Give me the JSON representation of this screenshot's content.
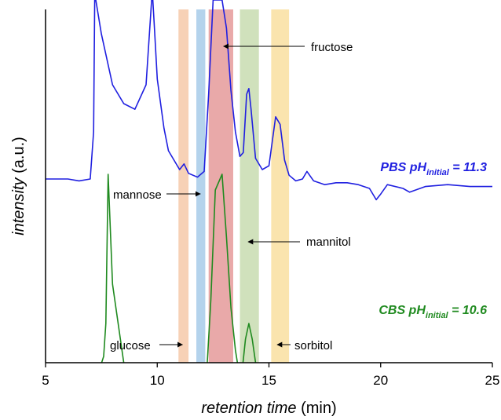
{
  "chart_data": {
    "type": "line",
    "xlabel": {
      "italic": "retention time",
      "unit": " (min)"
    },
    "ylabel": {
      "italic": "intensity",
      "unit": " (a.u.)"
    },
    "xlim": [
      5,
      25
    ],
    "xticks": [
      5,
      10,
      15,
      20,
      25
    ],
    "yticks": false,
    "grid": false,
    "colors": {
      "pbs": "#1f1fe0",
      "cbs": "#1f8a1f",
      "glucose_band": "#f6c9a9",
      "mannose_band": "#a7cbe9",
      "fructose_band": "#e59a9a",
      "mannitol_band": "#c8dcb0",
      "sorbitol_band": "#f9dfa0"
    },
    "bands": [
      {
        "name": "glucose",
        "x": [
          10.95,
          11.4
        ],
        "color": "#f6c9a9"
      },
      {
        "name": "mannose",
        "x": [
          11.75,
          12.15
        ],
        "color": "#a7cbe9"
      },
      {
        "name": "fructose",
        "x": [
          12.3,
          13.4
        ],
        "color": "#e59a9a"
      },
      {
        "name": "mannitol",
        "x": [
          13.7,
          14.55
        ],
        "color": "#c8dcb0"
      },
      {
        "name": "sorbitol",
        "x": [
          15.1,
          15.9
        ],
        "color": "#f9dfa0"
      }
    ],
    "annotations": [
      {
        "text": "fructose",
        "arrow_to_x": 12.9
      },
      {
        "text": "mannose",
        "arrow_to_x": 12.0
      },
      {
        "text": "mannitol",
        "arrow_to_x": 14.0
      },
      {
        "text": "glucose",
        "arrow_to_x": 11.2
      },
      {
        "text": "sorbitol",
        "arrow_to_x": 15.3
      }
    ],
    "series": [
      {
        "name": "PBS",
        "label": {
          "prefix": "PBS pH",
          "sub": "initial",
          "suffix": " = 11.3"
        },
        "color": "#1f1fe0",
        "x": [
          5.0,
          6.0,
          6.5,
          7.0,
          7.15,
          7.2,
          7.25,
          7.5,
          8.0,
          8.5,
          9.0,
          9.5,
          9.75,
          9.8,
          9.85,
          10.0,
          10.3,
          10.5,
          10.7,
          11.0,
          11.2,
          11.4,
          11.8,
          12.1,
          12.3,
          12.5,
          12.7,
          12.9,
          13.1,
          13.3,
          13.5,
          13.7,
          13.85,
          14.0,
          14.1,
          14.2,
          14.4,
          14.7,
          15.0,
          15.3,
          15.5,
          15.7,
          15.9,
          16.2,
          16.5,
          16.7,
          17.0,
          17.5,
          18.0,
          18.5,
          19.0,
          19.5,
          19.8,
          20.0,
          20.3,
          21.0,
          21.3,
          22.0,
          23.0,
          24.0,
          25.0
        ],
        "y": [
          0.05,
          0.05,
          0.04,
          0.05,
          0.3,
          1.0,
          1.0,
          0.82,
          0.55,
          0.45,
          0.42,
          0.55,
          1.0,
          1.0,
          0.9,
          0.58,
          0.32,
          0.2,
          0.16,
          0.1,
          0.13,
          0.08,
          0.06,
          0.09,
          0.5,
          1.0,
          1.0,
          1.0,
          0.85,
          0.52,
          0.3,
          0.17,
          0.19,
          0.5,
          0.53,
          0.42,
          0.16,
          0.1,
          0.12,
          0.38,
          0.34,
          0.15,
          0.07,
          0.04,
          0.05,
          0.09,
          0.04,
          0.02,
          0.03,
          0.03,
          0.02,
          0.0,
          -0.06,
          -0.03,
          0.02,
          0.0,
          -0.02,
          0.01,
          0.02,
          0.01,
          0.01
        ]
      },
      {
        "name": "CBS",
        "label": {
          "prefix": "CBS pH",
          "sub": "initial",
          "suffix": " = 10.6"
        },
        "color": "#1f8a1f",
        "x": [
          5.0,
          6.0,
          7.0,
          7.25,
          7.35,
          7.6,
          7.7,
          7.8,
          8.0,
          8.5,
          9.0,
          9.5,
          10.0,
          10.5,
          10.6,
          10.8,
          11.0,
          11.2,
          11.4,
          11.8,
          12.0,
          12.2,
          12.4,
          12.6,
          12.9,
          13.1,
          13.3,
          13.5,
          13.7,
          13.8,
          13.95,
          14.1,
          14.25,
          14.5,
          14.8,
          15.2,
          15.4,
          15.55,
          15.8,
          16.0,
          16.3,
          16.6,
          16.8,
          17.0,
          17.5,
          18.5,
          19.0,
          19.4,
          19.8,
          20.1,
          20.5,
          20.65,
          20.75,
          21.5,
          21.65,
          22.0,
          22.5,
          23.0,
          24.0,
          25.0
        ],
        "y": [
          -0.5,
          -0.5,
          -0.5,
          -0.45,
          -0.27,
          -0.16,
          0.05,
          1.0,
          0.3,
          -0.2,
          -0.35,
          -0.42,
          -0.45,
          -0.48,
          -0.4,
          -0.45,
          -0.47,
          -0.38,
          -0.44,
          -0.45,
          -0.42,
          -0.3,
          0.2,
          0.9,
          1.0,
          0.6,
          0.15,
          -0.12,
          -0.3,
          -0.25,
          -0.05,
          0.05,
          -0.05,
          -0.3,
          -0.45,
          -0.42,
          -0.3,
          -0.33,
          -0.38,
          -0.37,
          -0.38,
          -0.3,
          -0.35,
          -0.45,
          -0.48,
          -0.48,
          -0.5,
          -0.52,
          -0.56,
          -0.5,
          -0.54,
          -0.7,
          -1.2,
          -1.2,
          -0.58,
          -0.5,
          -0.49,
          -0.49,
          -0.5,
          -0.5
        ]
      }
    ]
  }
}
